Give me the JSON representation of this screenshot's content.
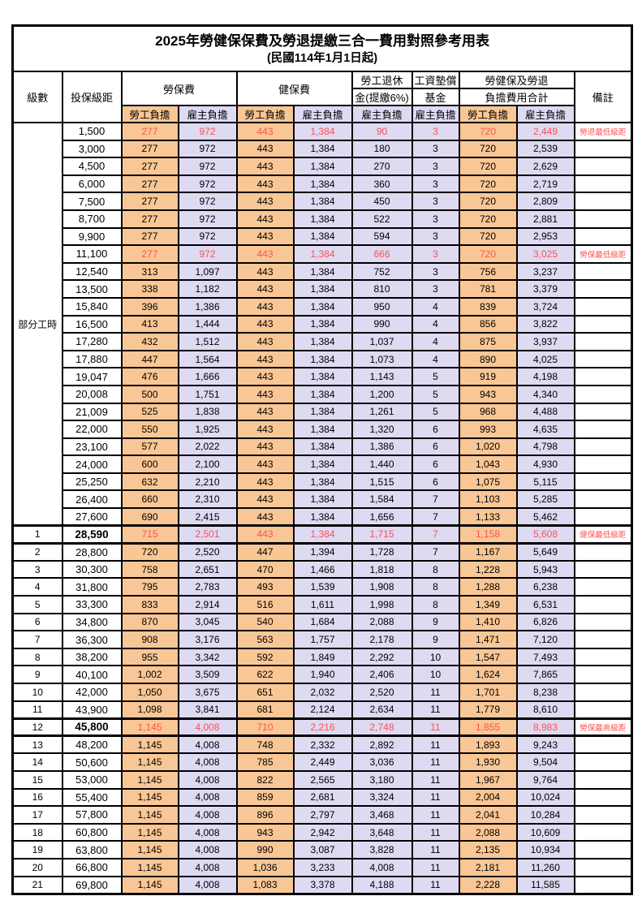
{
  "title": "2025年勞健保保費及勞退提繳三合一費用對照參考用表",
  "subtitle": "(民國114年1月1日起)",
  "header": {
    "level": "級數",
    "bracket": "投保級距",
    "labor_ins": "勞保費",
    "health_ins": "健保費",
    "pension_line1": "勞工退休",
    "pension_line2": "金(提繳6%)",
    "wage_fund_line1": "工資墊償",
    "wage_fund_line2": "基金",
    "total_line1": "勞健保及勞退",
    "total_line2": "負擔費用合計",
    "note": "備註",
    "employee": "勞工負擔",
    "employer": "雇主負擔"
  },
  "part_time_label": "部分工時",
  "colors": {
    "employee_col_bg": "#F9C795",
    "employer_col_bg": "#DEDAF2",
    "highlight_text": "#FF5050",
    "border": "#000000"
  },
  "rows": [
    {
      "level": "",
      "bracket": "1,500",
      "v": [
        "277",
        "972",
        "443",
        "1,384",
        "90",
        "3",
        "720",
        "2,449"
      ],
      "note": "勞退最低級距",
      "red": true,
      "thick": false,
      "em": false
    },
    {
      "level": "",
      "bracket": "3,000",
      "v": [
        "277",
        "972",
        "443",
        "1,384",
        "180",
        "3",
        "720",
        "2,539"
      ],
      "note": "",
      "red": false,
      "thick": false,
      "em": false
    },
    {
      "level": "",
      "bracket": "4,500",
      "v": [
        "277",
        "972",
        "443",
        "1,384",
        "270",
        "3",
        "720",
        "2,629"
      ],
      "note": "",
      "red": false,
      "thick": false,
      "em": false
    },
    {
      "level": "",
      "bracket": "6,000",
      "v": [
        "277",
        "972",
        "443",
        "1,384",
        "360",
        "3",
        "720",
        "2,719"
      ],
      "note": "",
      "red": false,
      "thick": false,
      "em": false
    },
    {
      "level": "",
      "bracket": "7,500",
      "v": [
        "277",
        "972",
        "443",
        "1,384",
        "450",
        "3",
        "720",
        "2,809"
      ],
      "note": "",
      "red": false,
      "thick": false,
      "em": false
    },
    {
      "level": "",
      "bracket": "8,700",
      "v": [
        "277",
        "972",
        "443",
        "1,384",
        "522",
        "3",
        "720",
        "2,881"
      ],
      "note": "",
      "red": false,
      "thick": false,
      "em": false
    },
    {
      "level": "",
      "bracket": "9,900",
      "v": [
        "277",
        "972",
        "443",
        "1,384",
        "594",
        "3",
        "720",
        "2,953"
      ],
      "note": "",
      "red": false,
      "thick": false,
      "em": false
    },
    {
      "level": "",
      "bracket": "11,100",
      "v": [
        "277",
        "972",
        "443",
        "1,384",
        "666",
        "3",
        "720",
        "3,025"
      ],
      "note": "勞保最低級距",
      "red": true,
      "thick": false,
      "em": false
    },
    {
      "level": "",
      "bracket": "12,540",
      "v": [
        "313",
        "1,097",
        "443",
        "1,384",
        "752",
        "3",
        "756",
        "3,237"
      ],
      "note": "",
      "red": false,
      "thick": false,
      "em": false
    },
    {
      "level": "",
      "bracket": "13,500",
      "v": [
        "338",
        "1,182",
        "443",
        "1,384",
        "810",
        "3",
        "781",
        "3,379"
      ],
      "note": "",
      "red": false,
      "thick": false,
      "em": false
    },
    {
      "level": "",
      "bracket": "15,840",
      "v": [
        "396",
        "1,386",
        "443",
        "1,384",
        "950",
        "4",
        "839",
        "3,724"
      ],
      "note": "",
      "red": false,
      "thick": false,
      "em": false
    },
    {
      "level": "",
      "bracket": "16,500",
      "v": [
        "413",
        "1,444",
        "443",
        "1,384",
        "990",
        "4",
        "856",
        "3,822"
      ],
      "note": "",
      "red": false,
      "thick": false,
      "em": false
    },
    {
      "level": "",
      "bracket": "17,280",
      "v": [
        "432",
        "1,512",
        "443",
        "1,384",
        "1,037",
        "4",
        "875",
        "3,937"
      ],
      "note": "",
      "red": false,
      "thick": false,
      "em": false
    },
    {
      "level": "",
      "bracket": "17,880",
      "v": [
        "447",
        "1,564",
        "443",
        "1,384",
        "1,073",
        "4",
        "890",
        "4,025"
      ],
      "note": "",
      "red": false,
      "thick": false,
      "em": false
    },
    {
      "level": "",
      "bracket": "19,047",
      "v": [
        "476",
        "1,666",
        "443",
        "1,384",
        "1,143",
        "5",
        "919",
        "4,198"
      ],
      "note": "",
      "red": false,
      "thick": false,
      "em": false
    },
    {
      "level": "",
      "bracket": "20,008",
      "v": [
        "500",
        "1,751",
        "443",
        "1,384",
        "1,200",
        "5",
        "943",
        "4,340"
      ],
      "note": "",
      "red": false,
      "thick": false,
      "em": false
    },
    {
      "level": "",
      "bracket": "21,009",
      "v": [
        "525",
        "1,838",
        "443",
        "1,384",
        "1,261",
        "5",
        "968",
        "4,488"
      ],
      "note": "",
      "red": false,
      "thick": false,
      "em": false
    },
    {
      "level": "",
      "bracket": "22,000",
      "v": [
        "550",
        "1,925",
        "443",
        "1,384",
        "1,320",
        "6",
        "993",
        "4,635"
      ],
      "note": "",
      "red": false,
      "thick": false,
      "em": false
    },
    {
      "level": "",
      "bracket": "23,100",
      "v": [
        "577",
        "2,022",
        "443",
        "1,384",
        "1,386",
        "6",
        "1,020",
        "4,798"
      ],
      "note": "",
      "red": false,
      "thick": false,
      "em": false
    },
    {
      "level": "",
      "bracket": "24,000",
      "v": [
        "600",
        "2,100",
        "443",
        "1,384",
        "1,440",
        "6",
        "1,043",
        "4,930"
      ],
      "note": "",
      "red": false,
      "thick": false,
      "em": false
    },
    {
      "level": "",
      "bracket": "25,250",
      "v": [
        "632",
        "2,210",
        "443",
        "1,384",
        "1,515",
        "6",
        "1,075",
        "5,115"
      ],
      "note": "",
      "red": false,
      "thick": false,
      "em": false
    },
    {
      "level": "",
      "bracket": "26,400",
      "v": [
        "660",
        "2,310",
        "443",
        "1,384",
        "1,584",
        "7",
        "1,103",
        "5,285"
      ],
      "note": "",
      "red": false,
      "thick": false,
      "em": false
    },
    {
      "level": "",
      "bracket": "27,600",
      "v": [
        "690",
        "2,415",
        "443",
        "1,384",
        "1,656",
        "7",
        "1,133",
        "5,462"
      ],
      "note": "",
      "red": false,
      "thick": false,
      "em": false
    },
    {
      "level": "1",
      "bracket": "28,590",
      "v": [
        "715",
        "2,501",
        "443",
        "1,384",
        "1,715",
        "7",
        "1,158",
        "5,608"
      ],
      "note": "健保最低級距",
      "red": true,
      "thick": true,
      "em": true
    },
    {
      "level": "2",
      "bracket": "28,800",
      "v": [
        "720",
        "2,520",
        "447",
        "1,394",
        "1,728",
        "7",
        "1,167",
        "5,649"
      ],
      "note": "",
      "red": false,
      "thick": false,
      "em": false
    },
    {
      "level": "3",
      "bracket": "30,300",
      "v": [
        "758",
        "2,651",
        "470",
        "1,466",
        "1,818",
        "8",
        "1,228",
        "5,943"
      ],
      "note": "",
      "red": false,
      "thick": false,
      "em": false
    },
    {
      "level": "4",
      "bracket": "31,800",
      "v": [
        "795",
        "2,783",
        "493",
        "1,539",
        "1,908",
        "8",
        "1,288",
        "6,238"
      ],
      "note": "",
      "red": false,
      "thick": false,
      "em": false
    },
    {
      "level": "5",
      "bracket": "33,300",
      "v": [
        "833",
        "2,914",
        "516",
        "1,611",
        "1,998",
        "8",
        "1,349",
        "6,531"
      ],
      "note": "",
      "red": false,
      "thick": false,
      "em": false
    },
    {
      "level": "6",
      "bracket": "34,800",
      "v": [
        "870",
        "3,045",
        "540",
        "1,684",
        "2,088",
        "9",
        "1,410",
        "6,826"
      ],
      "note": "",
      "red": false,
      "thick": false,
      "em": false
    },
    {
      "level": "7",
      "bracket": "36,300",
      "v": [
        "908",
        "3,176",
        "563",
        "1,757",
        "2,178",
        "9",
        "1,471",
        "7,120"
      ],
      "note": "",
      "red": false,
      "thick": false,
      "em": false
    },
    {
      "level": "8",
      "bracket": "38,200",
      "v": [
        "955",
        "3,342",
        "592",
        "1,849",
        "2,292",
        "10",
        "1,547",
        "7,493"
      ],
      "note": "",
      "red": false,
      "thick": false,
      "em": false
    },
    {
      "level": "9",
      "bracket": "40,100",
      "v": [
        "1,002",
        "3,509",
        "622",
        "1,940",
        "2,406",
        "10",
        "1,624",
        "7,865"
      ],
      "note": "",
      "red": false,
      "thick": false,
      "em": false
    },
    {
      "level": "10",
      "bracket": "42,000",
      "v": [
        "1,050",
        "3,675",
        "651",
        "2,032",
        "2,520",
        "11",
        "1,701",
        "8,238"
      ],
      "note": "",
      "red": false,
      "thick": false,
      "em": false
    },
    {
      "level": "11",
      "bracket": "43,900",
      "v": [
        "1,098",
        "3,841",
        "681",
        "2,124",
        "2,634",
        "11",
        "1,779",
        "8,610"
      ],
      "note": "",
      "red": false,
      "thick": false,
      "em": false
    },
    {
      "level": "12",
      "bracket": "45,800",
      "v": [
        "1,145",
        "4,008",
        "710",
        "2,216",
        "2,748",
        "11",
        "1,855",
        "8,983"
      ],
      "note": "勞保最高級距",
      "red": true,
      "thick": true,
      "em": true
    },
    {
      "level": "13",
      "bracket": "48,200",
      "v": [
        "1,145",
        "4,008",
        "748",
        "2,332",
        "2,892",
        "11",
        "1,893",
        "9,243"
      ],
      "note": "",
      "red": false,
      "thick": false,
      "em": false
    },
    {
      "level": "14",
      "bracket": "50,600",
      "v": [
        "1,145",
        "4,008",
        "785",
        "2,449",
        "3,036",
        "11",
        "1,930",
        "9,504"
      ],
      "note": "",
      "red": false,
      "thick": false,
      "em": false
    },
    {
      "level": "15",
      "bracket": "53,000",
      "v": [
        "1,145",
        "4,008",
        "822",
        "2,565",
        "3,180",
        "11",
        "1,967",
        "9,764"
      ],
      "note": "",
      "red": false,
      "thick": false,
      "em": false
    },
    {
      "level": "16",
      "bracket": "55,400",
      "v": [
        "1,145",
        "4,008",
        "859",
        "2,681",
        "3,324",
        "11",
        "2,004",
        "10,024"
      ],
      "note": "",
      "red": false,
      "thick": false,
      "em": false
    },
    {
      "level": "17",
      "bracket": "57,800",
      "v": [
        "1,145",
        "4,008",
        "896",
        "2,797",
        "3,468",
        "11",
        "2,041",
        "10,284"
      ],
      "note": "",
      "red": false,
      "thick": false,
      "em": false
    },
    {
      "level": "18",
      "bracket": "60,800",
      "v": [
        "1,145",
        "4,008",
        "943",
        "2,942",
        "3,648",
        "11",
        "2,088",
        "10,609"
      ],
      "note": "",
      "red": false,
      "thick": false,
      "em": false
    },
    {
      "level": "19",
      "bracket": "63,800",
      "v": [
        "1,145",
        "4,008",
        "990",
        "3,087",
        "3,828",
        "11",
        "2,135",
        "10,934"
      ],
      "note": "",
      "red": false,
      "thick": false,
      "em": false
    },
    {
      "level": "20",
      "bracket": "66,800",
      "v": [
        "1,145",
        "4,008",
        "1,036",
        "3,233",
        "4,008",
        "11",
        "2,181",
        "11,260"
      ],
      "note": "",
      "red": false,
      "thick": false,
      "em": false
    },
    {
      "level": "21",
      "bracket": "69,800",
      "v": [
        "1,145",
        "4,008",
        "1,083",
        "3,378",
        "4,188",
        "11",
        "2,228",
        "11,585"
      ],
      "note": "",
      "red": false,
      "thick": false,
      "em": false
    }
  ]
}
